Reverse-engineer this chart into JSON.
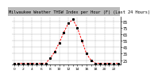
{
  "title": "Milwaukee Weather THSW Index per Hour (F) (Last 24 Hours)",
  "hours": [
    0,
    1,
    2,
    3,
    4,
    5,
    6,
    7,
    8,
    9,
    10,
    11,
    12,
    13,
    14,
    15,
    16,
    17,
    18,
    19,
    20,
    21,
    22,
    23
  ],
  "values": [
    20,
    20,
    20,
    20,
    20,
    20,
    20,
    20,
    28,
    38,
    52,
    68,
    82,
    88,
    75,
    55,
    35,
    25,
    20,
    20,
    20,
    20,
    20,
    20
  ],
  "line_color": "#ff0000",
  "marker_color": "#000000",
  "bg_color": "#ffffff",
  "title_bg": "#bbbbbb",
  "grid_color": "#888888",
  "ylim": [
    18,
    92
  ],
  "ytick_values": [
    25,
    35,
    45,
    55,
    65,
    75,
    85
  ],
  "ytick_labels": [
    "25",
    "35",
    "45",
    "55",
    "65",
    "75",
    "85"
  ],
  "ylabel_fontsize": 3.5,
  "title_fontsize": 3.8,
  "xlabel_fontsize": 3.2
}
